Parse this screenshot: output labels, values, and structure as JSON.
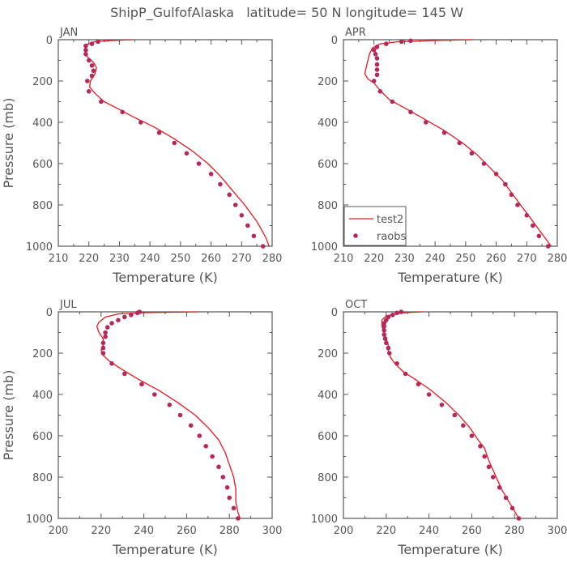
{
  "figure_title": "ShipP_GulfofAlaska   latitude= 50 N longitude= 145 W",
  "legend": {
    "model_label": "test2",
    "obs_label": "raobs"
  },
  "colors": {
    "model": "#e8191e",
    "obs": "#b5295a",
    "axis": "#555555"
  },
  "chart_data": [
    {
      "type": "line",
      "panel": "JAN",
      "xlabel": "Temperature (K)",
      "ylabel": "Pressure (mb)",
      "xlim": [
        210,
        280
      ],
      "ylim": [
        1000,
        0
      ],
      "xticks": [
        210,
        220,
        230,
        240,
        250,
        260,
        270,
        280
      ],
      "yticks": [
        0,
        200,
        400,
        600,
        800,
        1000
      ],
      "legend": false,
      "series": [
        {
          "name": "test2",
          "kind": "line",
          "points": [
            [
              234,
              0
            ],
            [
              226,
              5
            ],
            [
              222,
              10
            ],
            [
              219,
              25
            ],
            [
              218.7,
              50
            ],
            [
              219.3,
              80
            ],
            [
              221.5,
              110
            ],
            [
              222.5,
              135
            ],
            [
              222,
              165
            ],
            [
              220.5,
              200
            ],
            [
              220.3,
              230
            ],
            [
              222,
              260
            ],
            [
              225,
              300
            ],
            [
              229,
              330
            ],
            [
              234,
              370
            ],
            [
              241,
              420
            ],
            [
              248,
              480
            ],
            [
              254,
              540
            ],
            [
              259,
              600
            ],
            [
              263,
              660
            ],
            [
              267,
              730
            ],
            [
              271,
              800
            ],
            [
              275,
              880
            ],
            [
              278,
              960
            ],
            [
              279,
              1000
            ]
          ]
        },
        {
          "name": "raobs",
          "kind": "points",
          "points": [
            [
              223,
              10
            ],
            [
              221,
              20
            ],
            [
              219,
              30
            ],
            [
              219,
              50
            ],
            [
              219,
              70
            ],
            [
              220,
              100
            ],
            [
              221,
              125
            ],
            [
              221.5,
              150
            ],
            [
              221,
              175
            ],
            [
              219.5,
              200
            ],
            [
              220,
              250
            ],
            [
              224,
              300
            ],
            [
              231,
              350
            ],
            [
              237,
              400
            ],
            [
              243,
              450
            ],
            [
              248,
              500
            ],
            [
              252,
              550
            ],
            [
              256,
              600
            ],
            [
              260,
              650
            ],
            [
              263,
              700
            ],
            [
              266,
              750
            ],
            [
              268,
              800
            ],
            [
              270,
              850
            ],
            [
              272,
              900
            ],
            [
              274,
              950
            ],
            [
              277,
              1000
            ]
          ]
        }
      ]
    },
    {
      "type": "line",
      "panel": "APR",
      "xlabel": "Temperature (K)",
      "ylabel": "",
      "xlim": [
        210,
        280
      ],
      "ylim": [
        1000,
        0
      ],
      "xticks": [
        210,
        220,
        230,
        240,
        250,
        260,
        270,
        280
      ],
      "yticks": [
        0,
        200,
        400,
        600,
        800,
        1000
      ],
      "legend": true,
      "series": [
        {
          "name": "test2",
          "kind": "line",
          "points": [
            [
              252,
              0
            ],
            [
              240,
              4
            ],
            [
              228,
              10
            ],
            [
              222,
              20
            ],
            [
              219.5,
              40
            ],
            [
              218.5,
              70
            ],
            [
              218,
              100
            ],
            [
              217.5,
              130
            ],
            [
              217,
              165
            ],
            [
              218,
              190
            ],
            [
              220,
              210
            ],
            [
              222,
              245
            ],
            [
              225,
              290
            ],
            [
              230,
              330
            ],
            [
              236,
              380
            ],
            [
              243,
              440
            ],
            [
              249,
              500
            ],
            [
              254,
              560
            ],
            [
              258,
              620
            ],
            [
              262,
              680
            ],
            [
              265,
              740
            ],
            [
              268,
              800
            ],
            [
              271,
              860
            ],
            [
              274,
              920
            ],
            [
              277,
              980
            ],
            [
              278,
              1000
            ]
          ]
        },
        {
          "name": "raobs",
          "kind": "points",
          "points": [
            [
              232,
              5
            ],
            [
              229,
              10
            ],
            [
              224,
              20
            ],
            [
              221,
              35
            ],
            [
              220,
              50
            ],
            [
              220.5,
              70
            ],
            [
              221,
              90
            ],
            [
              221,
              120
            ],
            [
              221,
              145
            ],
            [
              221,
              170
            ],
            [
              220,
              200
            ],
            [
              222,
              250
            ],
            [
              226,
              300
            ],
            [
              232,
              350
            ],
            [
              237,
              400
            ],
            [
              243,
              450
            ],
            [
              248,
              500
            ],
            [
              252,
              550
            ],
            [
              256,
              600
            ],
            [
              260,
              650
            ],
            [
              263,
              700
            ],
            [
              265,
              750
            ],
            [
              267,
              800
            ],
            [
              270,
              850
            ],
            [
              272,
              900
            ],
            [
              274,
              950
            ],
            [
              277,
              1000
            ]
          ]
        }
      ]
    },
    {
      "type": "line",
      "panel": "JUL",
      "xlabel": "Temperature (K)",
      "ylabel": "Pressure (mb)",
      "xlim": [
        200,
        300
      ],
      "ylim": [
        1000,
        0
      ],
      "xticks": [
        200,
        220,
        240,
        260,
        280,
        300
      ],
      "yticks": [
        0,
        200,
        400,
        600,
        800,
        1000
      ],
      "legend": false,
      "series": [
        {
          "name": "test2",
          "kind": "line",
          "points": [
            [
              265,
              0
            ],
            [
              240,
              4
            ],
            [
              228,
              10
            ],
            [
              222,
              25
            ],
            [
              219,
              50
            ],
            [
              218,
              70
            ],
            [
              219,
              100
            ],
            [
              221,
              130
            ],
            [
              221,
              160
            ],
            [
              220,
              185
            ],
            [
              221,
              210
            ],
            [
              224,
              240
            ],
            [
              230,
              280
            ],
            [
              238,
              330
            ],
            [
              247,
              380
            ],
            [
              256,
              440
            ],
            [
              264,
              500
            ],
            [
              270,
              560
            ],
            [
              275,
              620
            ],
            [
              278,
              680
            ],
            [
              280,
              740
            ],
            [
              282,
              800
            ],
            [
              283,
              860
            ],
            [
              283,
              920
            ],
            [
              284,
              970
            ],
            [
              285,
              1000
            ]
          ]
        },
        {
          "name": "raobs",
          "kind": "points",
          "points": [
            [
              238,
              0
            ],
            [
              237,
              5
            ],
            [
              234,
              15
            ],
            [
              231,
              25
            ],
            [
              228,
              40
            ],
            [
              225,
              55
            ],
            [
              223,
              75
            ],
            [
              222,
              100
            ],
            [
              222,
              120
            ],
            [
              221,
              150
            ],
            [
              221,
              175
            ],
            [
              221,
              200
            ],
            [
              225,
              250
            ],
            [
              231,
              300
            ],
            [
              239,
              350
            ],
            [
              245,
              400
            ],
            [
              252,
              450
            ],
            [
              257,
              500
            ],
            [
              262,
              550
            ],
            [
              266,
              600
            ],
            [
              269,
              650
            ],
            [
              272,
              700
            ],
            [
              275,
              750
            ],
            [
              277,
              800
            ],
            [
              279,
              850
            ],
            [
              280,
              900
            ],
            [
              282,
              950
            ],
            [
              284,
              1000
            ]
          ]
        }
      ]
    },
    {
      "type": "line",
      "panel": "OCT",
      "xlabel": "Temperature (K)",
      "ylabel": "",
      "xlim": [
        200,
        300
      ],
      "ylim": [
        1000,
        0
      ],
      "xticks": [
        200,
        220,
        240,
        260,
        280,
        300
      ],
      "yticks": [
        0,
        200,
        400,
        600,
        800,
        1000
      ],
      "legend": false,
      "series": [
        {
          "name": "test2",
          "kind": "line",
          "points": [
            [
              237,
              0
            ],
            [
              229,
              4
            ],
            [
              224,
              10
            ],
            [
              220,
              20
            ],
            [
              218,
              40
            ],
            [
              218,
              70
            ],
            [
              219,
              100
            ],
            [
              220,
              130
            ],
            [
              221,
              160
            ],
            [
              221,
              190
            ],
            [
              222,
              220
            ],
            [
              224,
              250
            ],
            [
              228,
              290
            ],
            [
              234,
              330
            ],
            [
              241,
              380
            ],
            [
              248,
              440
            ],
            [
              254,
              500
            ],
            [
              259,
              560
            ],
            [
              263,
              620
            ],
            [
              266,
              660
            ],
            [
              268,
              720
            ],
            [
              271,
              790
            ],
            [
              274,
              860
            ],
            [
              278,
              930
            ],
            [
              282,
              1000
            ]
          ]
        },
        {
          "name": "raobs",
          "kind": "points",
          "points": [
            [
              227,
              0
            ],
            [
              225,
              5
            ],
            [
              223,
              15
            ],
            [
              221,
              25
            ],
            [
              220,
              40
            ],
            [
              219,
              55
            ],
            [
              219,
              70
            ],
            [
              219,
              90
            ],
            [
              219,
              110
            ],
            [
              219.5,
              130
            ],
            [
              220,
              150
            ],
            [
              221,
              175
            ],
            [
              221.5,
              200
            ],
            [
              225,
              250
            ],
            [
              229,
              300
            ],
            [
              235,
              350
            ],
            [
              240,
              400
            ],
            [
              246,
              450
            ],
            [
              252,
              500
            ],
            [
              256,
              550
            ],
            [
              260,
              600
            ],
            [
              264,
              650
            ],
            [
              266,
              700
            ],
            [
              268,
              750
            ],
            [
              270,
              800
            ],
            [
              273,
              850
            ],
            [
              276,
              900
            ],
            [
              279,
              950
            ],
            [
              282,
              1000
            ]
          ]
        }
      ]
    }
  ]
}
